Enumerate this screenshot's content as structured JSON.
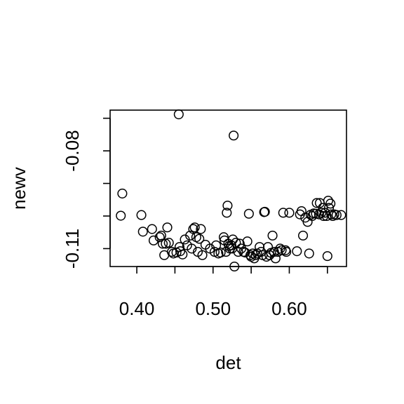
{
  "chart_data": {
    "type": "scatter",
    "title": "",
    "xlabel": "det",
    "ylabel": "newv",
    "xlim": [
      0.365,
      0.675
    ],
    "ylim": [
      -0.1155,
      -0.0675
    ],
    "grid": false,
    "x_ticks": [
      0.4,
      0.45,
      0.5,
      0.55,
      0.6,
      0.65
    ],
    "x_tick_labels": [
      "0.40",
      "",
      "0.50",
      "",
      "0.60",
      ""
    ],
    "y_ticks": [
      -0.11,
      -0.1,
      -0.09,
      -0.08,
      -0.07
    ],
    "y_tick_labels": [
      "-0.11",
      "",
      "",
      "-0.08",
      ""
    ],
    "marker": "open-circle",
    "series": [
      {
        "x": [
          0.381,
          0.379,
          0.406,
          0.408,
          0.42,
          0.422,
          0.43,
          0.432,
          0.434,
          0.436,
          0.438,
          0.44,
          0.442,
          0.446,
          0.448,
          0.452,
          0.455,
          0.456,
          0.457,
          0.46,
          0.463,
          0.466,
          0.47,
          0.472,
          0.474,
          0.476,
          0.478,
          0.48,
          0.482,
          0.484,
          0.486,
          0.49,
          0.496,
          0.502,
          0.504,
          0.507,
          0.51,
          0.514,
          0.515,
          0.517,
          0.518,
          0.519,
          0.52,
          0.521,
          0.522,
          0.524,
          0.525,
          0.526,
          0.527,
          0.528,
          0.53,
          0.533,
          0.535,
          0.537,
          0.54,
          0.542,
          0.545,
          0.547,
          0.549,
          0.55,
          0.552,
          0.554,
          0.556,
          0.558,
          0.561,
          0.563,
          0.565,
          0.567,
          0.568,
          0.57,
          0.572,
          0.574,
          0.576,
          0.578,
          0.58,
          0.582,
          0.585,
          0.588,
          0.59,
          0.592,
          0.595,
          0.596,
          0.6,
          0.61,
          0.614,
          0.616,
          0.618,
          0.621,
          0.624,
          0.626,
          0.628,
          0.63,
          0.632,
          0.635,
          0.636,
          0.639,
          0.64,
          0.642,
          0.644,
          0.645,
          0.647,
          0.649,
          0.65,
          0.651,
          0.652,
          0.654,
          0.655,
          0.657,
          0.659,
          0.662,
          0.668
        ],
        "y": [
          -0.0931,
          -0.0999,
          -0.0997,
          -0.1048,
          -0.104,
          -0.1075,
          -0.1065,
          -0.106,
          -0.1085,
          -0.112,
          -0.1085,
          -0.1035,
          -0.1082,
          -0.111,
          -0.1115,
          -0.1112,
          -0.0688,
          -0.1095,
          -0.1108,
          -0.1118,
          -0.1072,
          -0.109,
          -0.106,
          -0.11,
          -0.104,
          -0.1035,
          -0.1065,
          -0.111,
          -0.107,
          -0.104,
          -0.112,
          -0.1088,
          -0.11,
          -0.111,
          -0.109,
          -0.1115,
          -0.1112,
          -0.1065,
          -0.1075,
          -0.111,
          -0.099,
          -0.0968,
          -0.1085,
          -0.1092,
          -0.11,
          -0.109,
          -0.11,
          -0.1072,
          -0.0753,
          -0.1155,
          -0.1082,
          -0.111,
          -0.1085,
          -0.11,
          -0.111,
          -0.1112,
          -0.1078,
          -0.0993,
          -0.112,
          -0.1125,
          -0.1115,
          -0.113,
          -0.112,
          -0.1115,
          -0.1095,
          -0.111,
          -0.112,
          -0.0988,
          -0.0987,
          -0.1125,
          -0.1095,
          -0.112,
          -0.1113,
          -0.106,
          -0.111,
          -0.113,
          -0.111,
          -0.11,
          -0.1105,
          -0.099,
          -0.1105,
          -0.111,
          -0.099,
          -0.1108,
          -0.0995,
          -0.0985,
          -0.106,
          -0.1005,
          -0.1018,
          -0.1115,
          -0.0996,
          -0.1,
          -0.0992,
          -0.0993,
          -0.096,
          -0.0995,
          -0.096,
          -0.099,
          -0.0975,
          -0.1,
          -0.099,
          -0.1,
          -0.1123,
          -0.0953,
          -0.0975,
          -0.0962,
          -0.0995,
          -0.1,
          -0.0995,
          -0.0997,
          -0.0997
        ]
      }
    ]
  }
}
